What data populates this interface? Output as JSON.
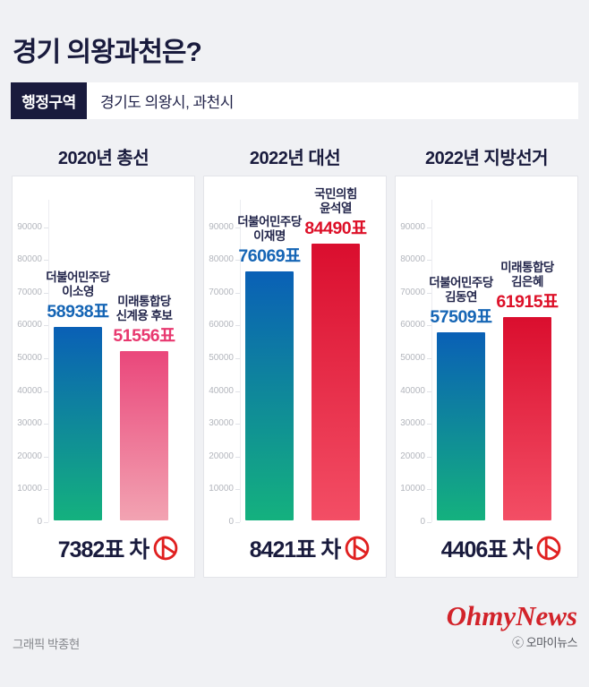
{
  "header": {
    "title": "경기 의왕과천은?",
    "region": {
      "label": "행정구역",
      "value": "경기도 의왕시, 과천시"
    }
  },
  "chart_data": [
    {
      "type": "bar",
      "title": "2020년 총선",
      "ylim": [
        0,
        90000
      ],
      "yticks": [
        90000,
        80000,
        70000,
        60000,
        50000,
        40000,
        30000,
        20000,
        10000,
        0
      ],
      "grid": false,
      "legend_position": "none",
      "bars": [
        {
          "party": "더불어민주당",
          "candidate": "이소영",
          "value": 58938,
          "value_label": "58938표",
          "theme": "blue"
        },
        {
          "party": "미래통합당",
          "candidate": "신계용 후보",
          "value": 51556,
          "value_label": "51556표",
          "theme": "pink"
        }
      ],
      "diff_label": "7382표 차"
    },
    {
      "type": "bar",
      "title": "2022년 대선",
      "ylim": [
        0,
        90000
      ],
      "yticks": [
        90000,
        80000,
        70000,
        60000,
        50000,
        40000,
        30000,
        20000,
        10000,
        0
      ],
      "grid": false,
      "legend_position": "none",
      "bars": [
        {
          "party": "더불어민주당",
          "candidate": "이재명",
          "value": 76069,
          "value_label": "76069표",
          "theme": "blue"
        },
        {
          "party": "국민의힘",
          "candidate": "윤석열",
          "value": 84490,
          "value_label": "84490표",
          "theme": "red"
        }
      ],
      "diff_label": "8421표 차"
    },
    {
      "type": "bar",
      "title": "2022년 지방선거",
      "ylim": [
        0,
        90000
      ],
      "yticks": [
        90000,
        80000,
        70000,
        60000,
        50000,
        40000,
        30000,
        20000,
        10000,
        0
      ],
      "grid": false,
      "legend_position": "none",
      "bars": [
        {
          "party": "더불어민주당",
          "candidate": "김동연",
          "value": 57509,
          "value_label": "57509표",
          "theme": "blue"
        },
        {
          "party": "미래통합당",
          "candidate": "김은혜",
          "value": 61915,
          "value_label": "61915표",
          "theme": "red"
        }
      ],
      "diff_label": "4406표 차"
    }
  ],
  "footer": {
    "credit": "그래픽 박종현",
    "logo": "OhmyNews",
    "copyright": "ⓒ 오마이뉴스"
  },
  "icons": {
    "diff_icon": "ballot-stamp-icon"
  },
  "colors": {
    "background": "#f0f1f4",
    "navy": "#191b3d",
    "blue_text": "#1565b5",
    "pink_text": "#e8386f",
    "red_text": "#dd1028",
    "bar_blue_top": "#0a60b6",
    "bar_blue_bottom": "#14b17e",
    "bar_pink_top": "#ea477b",
    "bar_pink_bottom": "#f2a3b2",
    "bar_red_top": "#da0e2e",
    "bar_red_bottom": "#f34e65",
    "stamp_red": "#e02020",
    "logo_red": "#d2232a"
  }
}
